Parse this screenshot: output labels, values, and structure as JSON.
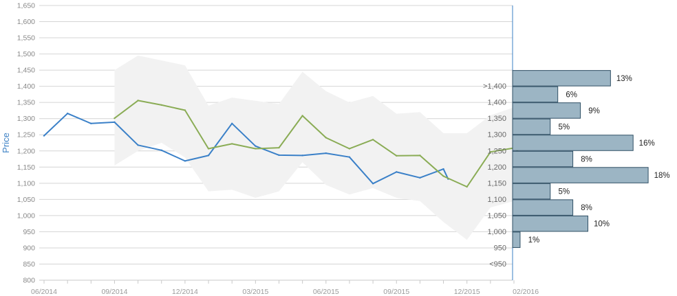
{
  "chart_data": {
    "type": "line",
    "title": "",
    "ylabel": "Price",
    "ylim": [
      800,
      1650
    ],
    "y_ticks": [
      "800",
      "850",
      "900",
      "950",
      "1,000",
      "1,050",
      "1,100",
      "1,150",
      "1,200",
      "1,250",
      "1,300",
      "1,350",
      "1,400",
      "1,450",
      "1,500",
      "1,550",
      "1,600",
      "1,650"
    ],
    "x_ticks": [
      "06/2014",
      "09/2014",
      "12/2014",
      "03/2015",
      "06/2015",
      "09/2015",
      "12/2015",
      "02/2016"
    ],
    "x_tick_index": [
      0,
      3,
      6,
      9,
      12,
      15,
      18,
      20.5
    ],
    "grid": "horizontal",
    "series": [
      {
        "color": "#3a80c8",
        "x": [
          0,
          1,
          2,
          3,
          4,
          5,
          6,
          7,
          8,
          9,
          10,
          11,
          12,
          13,
          14,
          15,
          16,
          17,
          17.2
        ],
        "values": [
          1247,
          1316,
          1285,
          1289,
          1218,
          1202,
          1169,
          1186,
          1285,
          1215,
          1187,
          1186,
          1193,
          1181,
          1099,
          1135,
          1117,
          1144,
          1113
        ]
      },
      {
        "color": "#8aac55",
        "x": [
          3,
          4,
          5,
          6,
          7,
          8,
          9,
          10,
          11,
          12,
          13,
          14,
          15,
          16,
          17,
          18,
          19,
          20,
          20.2
        ],
        "values": [
          1301,
          1356,
          1342,
          1326,
          1207,
          1222,
          1207,
          1210,
          1309,
          1241,
          1207,
          1235,
          1185,
          1186,
          1122,
          1089,
          1197,
          1209,
          1196
        ]
      }
    ],
    "band": {
      "color": "#f2f2f2",
      "x": [
        3,
        4,
        5,
        6,
        7,
        8,
        9,
        10,
        11,
        12,
        13,
        14,
        15,
        16,
        17,
        18,
        19,
        20
      ],
      "upper": [
        1450,
        1495,
        1480,
        1465,
        1340,
        1365,
        1355,
        1345,
        1445,
        1385,
        1350,
        1370,
        1315,
        1320,
        1255,
        1255,
        1310,
        1335
      ],
      "lower": [
        1155,
        1200,
        1225,
        1180,
        1075,
        1080,
        1055,
        1075,
        1165,
        1095,
        1065,
        1085,
        1055,
        1045,
        980,
        925,
        1025,
        1045
      ]
    },
    "histogram": {
      "color": "#9cb5c4",
      "border": "#2f4f64",
      "bins": [
        {
          "label": ">1,400",
          "value": 13,
          "pct": "13%"
        },
        {
          "label": "1,400",
          "value": 6,
          "pct": "6%"
        },
        {
          "label": "1,350",
          "value": 9,
          "pct": "9%"
        },
        {
          "label": "1,300",
          "value": 5,
          "pct": "5%"
        },
        {
          "label": "1,250",
          "value": 16,
          "pct": "16%"
        },
        {
          "label": "1,200",
          "value": 8,
          "pct": "8%"
        },
        {
          "label": "1,150",
          "value": 18,
          "pct": "18%"
        },
        {
          "label": "1,100",
          "value": 5,
          "pct": "5%"
        },
        {
          "label": "1,050",
          "value": 8,
          "pct": "8%"
        },
        {
          "label": "1,000",
          "value": 10,
          "pct": "10%"
        },
        {
          "label": "950",
          "value": 1,
          "pct": "1%"
        },
        {
          "label": "<950",
          "value": null,
          "pct": ""
        }
      ]
    }
  }
}
